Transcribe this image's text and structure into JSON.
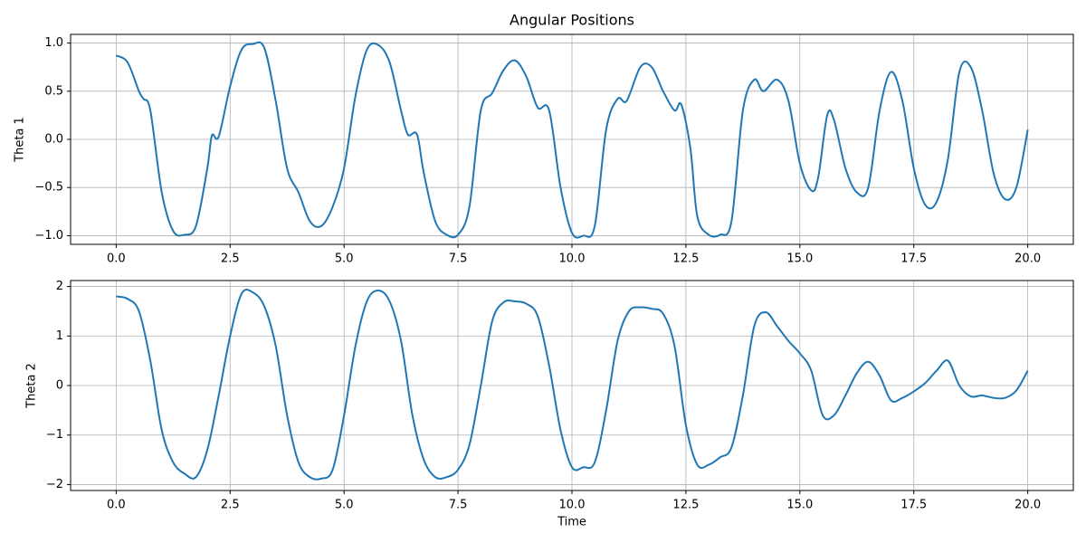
{
  "chart_data": [
    {
      "type": "line",
      "title": "Angular Positions",
      "ylabel": "Theta 1",
      "grid": true,
      "xlim": [
        -1,
        21
      ],
      "ylim": [
        -1.09,
        1.09
      ],
      "xticks": [
        {
          "value": 0,
          "label": "0.0"
        },
        2.5,
        {
          "value": 5,
          "label": "5.0"
        },
        7.5,
        {
          "value": 10,
          "label": "10.0"
        },
        12.5,
        {
          "value": 15,
          "label": "15.0"
        },
        17.5,
        {
          "value": 20,
          "label": "20.0"
        }
      ],
      "yticks": [
        {
          "value": -1,
          "label": "−1.0"
        },
        {
          "value": -0.5,
          "label": "−0.5"
        },
        {
          "value": 0,
          "label": "0.0"
        },
        0.5,
        {
          "value": 1,
          "label": "1.0"
        }
      ],
      "x": [
        0,
        0.25,
        0.5,
        0.6,
        0.75,
        1,
        1.25,
        1.5,
        1.75,
        2,
        2.1,
        2.25,
        2.5,
        2.75,
        3,
        3.25,
        3.5,
        3.75,
        4,
        4.25,
        4.5,
        4.75,
        5,
        5.25,
        5.5,
        5.75,
        6,
        6.25,
        6.4,
        6.6,
        6.75,
        7,
        7.25,
        7.5,
        7.75,
        8,
        8.25,
        8.5,
        8.75,
        9,
        9.25,
        9.5,
        9.75,
        10,
        10.25,
        10.5,
        10.75,
        11,
        11.2,
        11.5,
        11.75,
        12,
        12.25,
        12.4,
        12.6,
        12.75,
        13,
        13.25,
        13.5,
        13.75,
        14,
        14.2,
        14.5,
        14.75,
        15,
        15.25,
        15.4,
        15.6,
        15.75,
        16,
        16.25,
        16.5,
        16.75,
        17,
        17.25,
        17.5,
        17.75,
        18,
        18.25,
        18.5,
        18.75,
        19,
        19.25,
        19.5,
        19.75,
        20
      ],
      "color": "#1f77b4",
      "values": [
        0.87,
        0.8,
        0.5,
        0.42,
        0.3,
        -0.55,
        -0.95,
        -0.99,
        -0.9,
        -0.3,
        0.04,
        0.03,
        0.55,
        0.93,
        0.99,
        0.95,
        0.4,
        -0.3,
        -0.55,
        -0.85,
        -0.9,
        -0.7,
        -0.3,
        0.45,
        0.93,
        0.98,
        0.8,
        0.3,
        0.05,
        0.05,
        -0.35,
        -0.85,
        -0.99,
        -0.99,
        -0.7,
        0.3,
        0.48,
        0.72,
        0.82,
        0.65,
        0.33,
        0.3,
        -0.5,
        -0.97,
        -1.0,
        -0.9,
        0.1,
        0.42,
        0.4,
        0.75,
        0.75,
        0.5,
        0.3,
        0.36,
        -0.1,
        -0.8,
        -0.99,
        -0.99,
        -0.85,
        0.3,
        0.62,
        0.5,
        0.62,
        0.4,
        -0.25,
        -0.53,
        -0.4,
        0.25,
        0.2,
        -0.3,
        -0.55,
        -0.5,
        0.3,
        0.7,
        0.4,
        -0.3,
        -0.68,
        -0.65,
        -0.2,
        0.7,
        0.75,
        0.3,
        -0.35,
        -0.62,
        -0.5,
        0.1
      ]
    },
    {
      "type": "line",
      "xlabel": "Time",
      "ylabel": "Theta 2",
      "grid": true,
      "xlim": [
        -1,
        21
      ],
      "ylim": [
        -2.12,
        2.12
      ],
      "xticks": [
        {
          "value": 0,
          "label": "0.0"
        },
        2.5,
        {
          "value": 5,
          "label": "5.0"
        },
        7.5,
        {
          "value": 10,
          "label": "10.0"
        },
        12.5,
        {
          "value": 15,
          "label": "15.0"
        },
        17.5,
        {
          "value": 20,
          "label": "20.0"
        }
      ],
      "yticks": [
        {
          "value": -2,
          "label": "−2"
        },
        {
          "value": -1,
          "label": "−1"
        },
        0,
        1,
        2
      ],
      "x": [
        0,
        0.25,
        0.5,
        0.75,
        1,
        1.25,
        1.5,
        1.75,
        2,
        2.25,
        2.5,
        2.75,
        3,
        3.25,
        3.5,
        3.75,
        4,
        4.25,
        4.5,
        4.75,
        5,
        5.25,
        5.5,
        5.75,
        6,
        6.25,
        6.5,
        6.75,
        7,
        7.25,
        7.5,
        7.75,
        8,
        8.25,
        8.5,
        8.75,
        9,
        9.25,
        9.5,
        9.75,
        10,
        10.25,
        10.5,
        10.75,
        11,
        11.25,
        11.5,
        11.75,
        12,
        12.25,
        12.5,
        12.75,
        13,
        13.25,
        13.5,
        13.75,
        14,
        14.25,
        14.5,
        14.75,
        15,
        15.25,
        15.5,
        15.75,
        16,
        16.25,
        16.5,
        16.75,
        17,
        17.25,
        17.5,
        17.75,
        18,
        18.25,
        18.5,
        18.75,
        19,
        19.25,
        19.5,
        19.75,
        20
      ],
      "color": "#1f77b4",
      "values": [
        1.8,
        1.75,
        1.5,
        0.5,
        -0.9,
        -1.55,
        -1.78,
        -1.85,
        -1.3,
        -0.2,
        1.0,
        1.85,
        1.88,
        1.6,
        0.8,
        -0.6,
        -1.55,
        -1.85,
        -1.88,
        -1.7,
        -0.6,
        0.8,
        1.7,
        1.92,
        1.7,
        0.9,
        -0.6,
        -1.5,
        -1.85,
        -1.85,
        -1.7,
        -1.2,
        0.0,
        1.3,
        1.68,
        1.7,
        1.65,
        1.4,
        0.4,
        -0.9,
        -1.65,
        -1.65,
        -1.55,
        -0.5,
        0.9,
        1.5,
        1.58,
        1.55,
        1.45,
        0.8,
        -0.8,
        -1.6,
        -1.6,
        -1.45,
        -1.25,
        -0.2,
        1.2,
        1.48,
        1.2,
        0.9,
        0.65,
        0.3,
        -0.6,
        -0.6,
        -0.2,
        0.25,
        0.48,
        0.2,
        -0.3,
        -0.25,
        -0.12,
        0.05,
        0.3,
        0.5,
        0.0,
        -0.22,
        -0.2,
        -0.25,
        -0.25,
        -0.1,
        0.3
      ]
    }
  ]
}
